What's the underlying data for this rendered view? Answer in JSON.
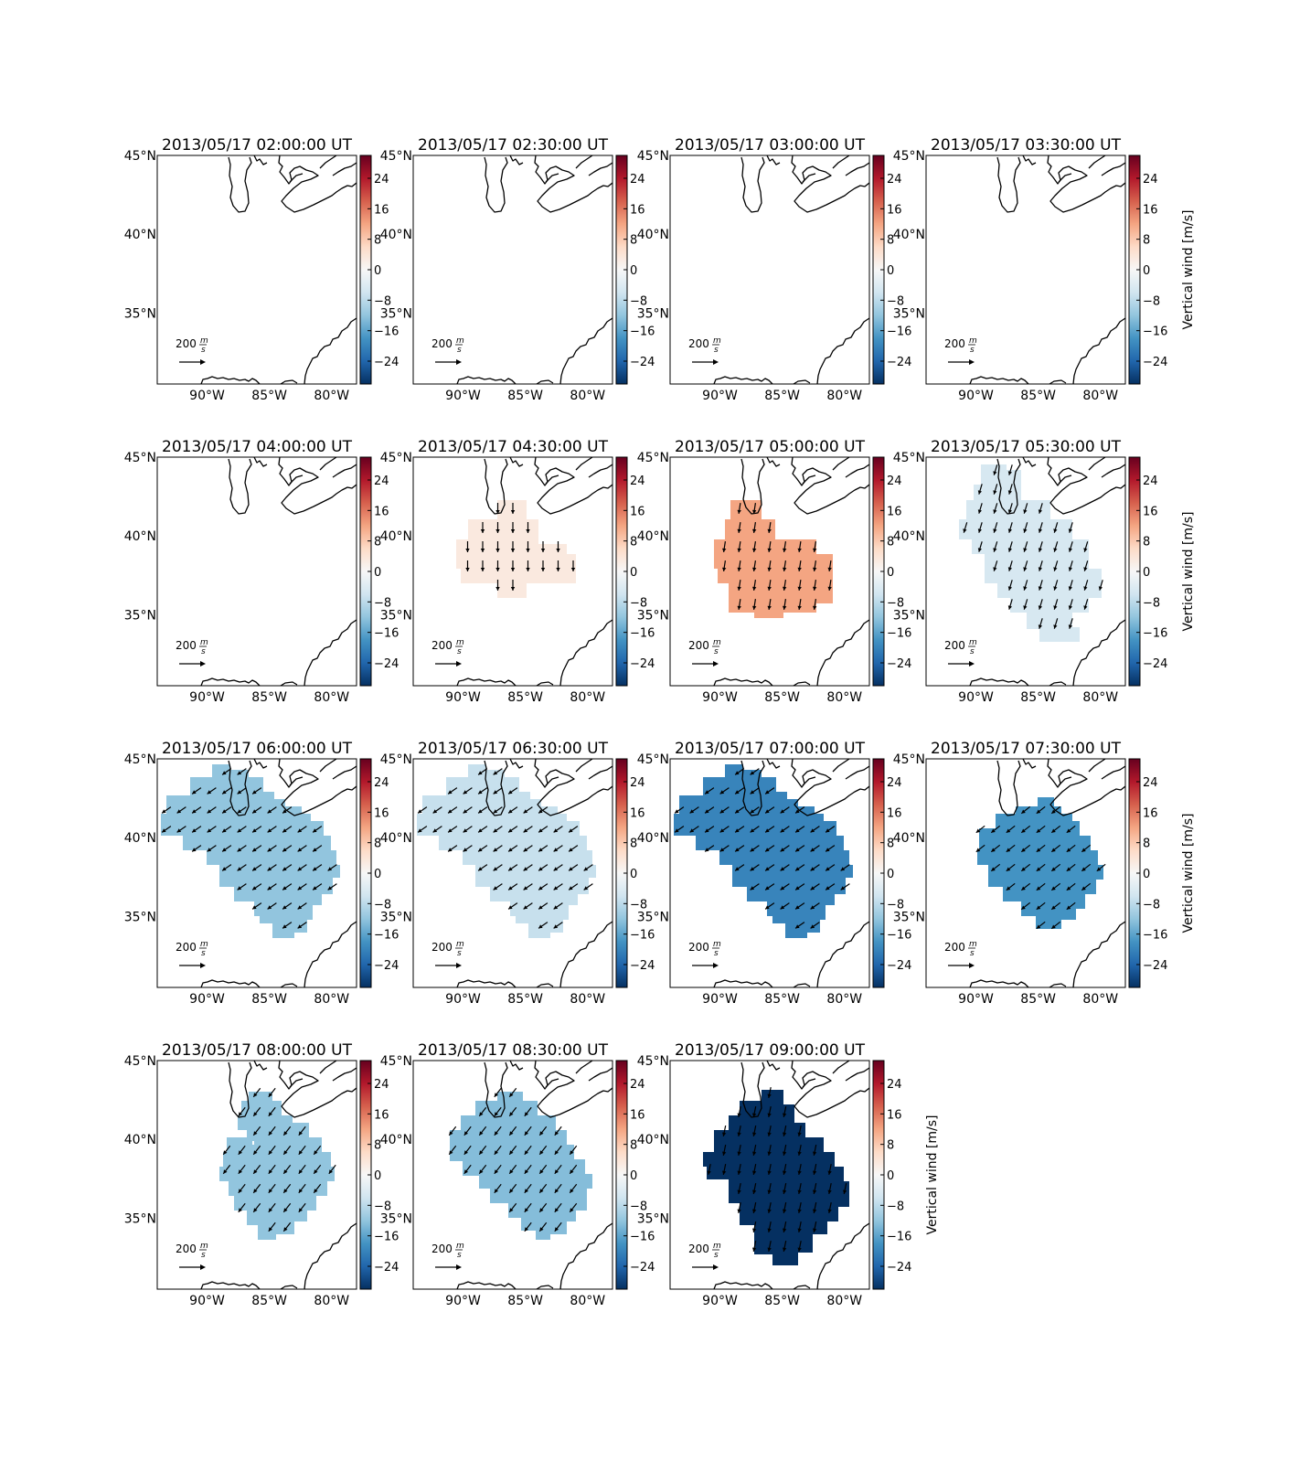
{
  "colorbar": {
    "ticks": [
      24,
      16,
      8,
      0,
      -8,
      -16,
      -24
    ],
    "tick_labels": [
      "24",
      "16",
      "8",
      "0",
      "−8",
      "−16",
      "−24"
    ],
    "range": [
      -30,
      30
    ],
    "label": "Vertical wind [m/s]",
    "colormap": "RdBu_r",
    "stops": [
      "#053061",
      "#2166ac",
      "#4393c3",
      "#92c5de",
      "#d1e5f0",
      "#f7f7f7",
      "#fddbc7",
      "#f4a582",
      "#d6604d",
      "#b2182b",
      "#67001f"
    ]
  },
  "axes": {
    "lon_range": [
      -94,
      -78
    ],
    "lat_range": [
      30.5,
      45
    ],
    "x_ticks": [
      -90,
      -85,
      -80
    ],
    "x_tick_labels": [
      "90°W",
      "85°W",
      "80°W"
    ],
    "y_ticks": [
      45,
      40,
      35
    ],
    "y_tick_labels": [
      "45°N",
      "40°N",
      "35°N"
    ]
  },
  "quiver_key": {
    "value": 200,
    "label": "200",
    "unit_num": "m",
    "unit_den": "s"
  },
  "panels": [
    {
      "title": "2013/05/17 02:00:00 UT",
      "value": null,
      "region": "none",
      "arrow": [
        0,
        0
      ]
    },
    {
      "title": "2013/05/17 02:30:00 UT",
      "value": null,
      "region": "none",
      "arrow": [
        0,
        0
      ]
    },
    {
      "title": "2013/05/17 03:00:00 UT",
      "value": null,
      "region": "none",
      "arrow": [
        0,
        0
      ]
    },
    {
      "title": "2013/05/17 03:30:00 UT",
      "value": null,
      "region": "none",
      "arrow": [
        0,
        0
      ]
    },
    {
      "title": "2013/05/17 04:00:00 UT",
      "value": null,
      "region": "none",
      "arrow": [
        0,
        0
      ]
    },
    {
      "title": "2013/05/17 04:30:00 UT",
      "value": 3,
      "region": "A",
      "arrow": [
        0,
        -1
      ]
    },
    {
      "title": "2013/05/17 05:00:00 UT",
      "value": 12,
      "region": "B",
      "arrow": [
        -0.15,
        -1
      ]
    },
    {
      "title": "2013/05/17 05:30:00 UT",
      "value": -5,
      "region": "C",
      "arrow": [
        -0.3,
        -1
      ]
    },
    {
      "title": "2013/05/17 06:00:00 UT",
      "value": -12,
      "region": "D",
      "arrow": [
        -1,
        -0.7
      ]
    },
    {
      "title": "2013/05/17 06:30:00 UT",
      "value": -7,
      "region": "D",
      "arrow": [
        -1,
        -0.7
      ]
    },
    {
      "title": "2013/05/17 07:00:00 UT",
      "value": -20,
      "region": "D",
      "arrow": [
        -1,
        -0.7
      ]
    },
    {
      "title": "2013/05/17 07:30:00 UT",
      "value": -18,
      "region": "E",
      "arrow": [
        -1,
        -0.8
      ]
    },
    {
      "title": "2013/05/17 08:00:00 UT",
      "value": -12,
      "region": "F",
      "arrow": [
        -0.8,
        -1
      ]
    },
    {
      "title": "2013/05/17 08:30:00 UT",
      "value": -13,
      "region": "G",
      "arrow": [
        -0.8,
        -1
      ]
    },
    {
      "title": "2013/05/17 09:00:00 UT",
      "value": -30,
      "region": "H",
      "arrow": [
        -0.2,
        -1
      ]
    }
  ]
}
